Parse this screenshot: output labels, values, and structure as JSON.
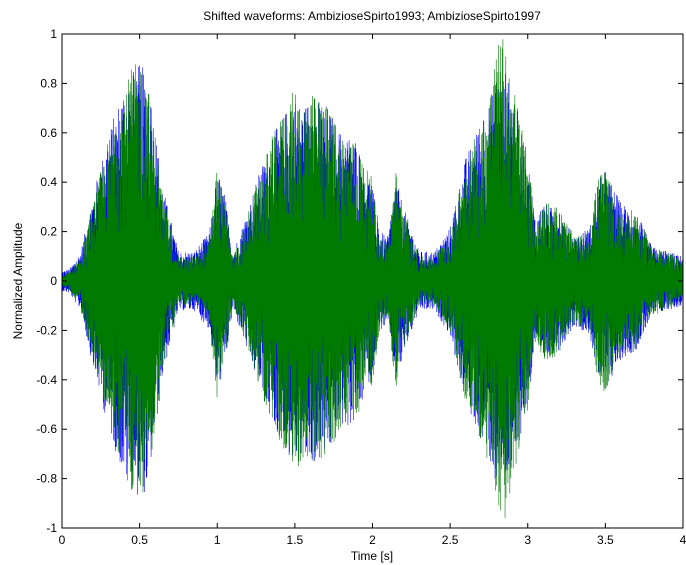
{
  "chart_data": {
    "type": "line",
    "title": "Shifted waveforms: AmbizioseSpirto1993;  AmbizioseSpirto1997",
    "xlabel": "Time [s]",
    "ylabel": "Normalized Amplitude",
    "xlim": [
      0,
      4
    ],
    "ylim": [
      -1,
      1
    ],
    "xticks": [
      0,
      0.5,
      1,
      1.5,
      2,
      2.5,
      3,
      3.5,
      4
    ],
    "xtick_labels": [
      "0",
      "0.5",
      "1",
      "1.5",
      "2",
      "2.5",
      "3",
      "3.5",
      "4"
    ],
    "yticks": [
      -1,
      -0.8,
      -0.6,
      -0.4,
      -0.2,
      0,
      0.2,
      0.4,
      0.6,
      0.8,
      1
    ],
    "ytick_labels": [
      "-1",
      "-0.8",
      "-0.6",
      "-0.4",
      "-0.2",
      "0",
      "0.2",
      "0.4",
      "0.6",
      "0.8",
      "1"
    ],
    "grid": false,
    "legend": "none",
    "series": [
      {
        "color": "#0000ff",
        "envelope": {
          "t": [
            0,
            0.05,
            0.12,
            0.2,
            0.3,
            0.4,
            0.45,
            0.5,
            0.55,
            0.6,
            0.65,
            0.75,
            0.85,
            0.95,
            1.0,
            1.05,
            1.1,
            1.15,
            1.25,
            1.35,
            1.45,
            1.5,
            1.55,
            1.6,
            1.7,
            1.8,
            1.9,
            1.95,
            2.0,
            2.05,
            2.1,
            2.15,
            2.2,
            2.3,
            2.4,
            2.5,
            2.6,
            2.7,
            2.75,
            2.8,
            2.85,
            2.9,
            3.0,
            3.05,
            3.1,
            3.2,
            3.3,
            3.4,
            3.45,
            3.5,
            3.55,
            3.6,
            3.7,
            3.8,
            3.9,
            4.0
          ],
          "amp": [
            0.04,
            0.05,
            0.12,
            0.35,
            0.6,
            0.8,
            0.85,
            0.88,
            0.85,
            0.62,
            0.38,
            0.12,
            0.12,
            0.2,
            0.45,
            0.35,
            0.12,
            0.2,
            0.4,
            0.58,
            0.7,
            0.75,
            0.7,
            0.75,
            0.72,
            0.6,
            0.58,
            0.45,
            0.38,
            0.2,
            0.18,
            0.42,
            0.3,
            0.12,
            0.12,
            0.22,
            0.5,
            0.65,
            0.72,
            0.85,
            0.82,
            0.8,
            0.5,
            0.25,
            0.32,
            0.28,
            0.18,
            0.22,
            0.4,
            0.45,
            0.38,
            0.32,
            0.28,
            0.14,
            0.12,
            0.1
          ]
        }
      },
      {
        "color": "#007a00",
        "envelope": {
          "t": [
            0,
            0.05,
            0.12,
            0.2,
            0.3,
            0.4,
            0.45,
            0.5,
            0.55,
            0.6,
            0.65,
            0.75,
            0.85,
            0.95,
            1.0,
            1.05,
            1.1,
            1.15,
            1.25,
            1.35,
            1.45,
            1.5,
            1.55,
            1.6,
            1.7,
            1.8,
            1.9,
            1.95,
            2.0,
            2.05,
            2.1,
            2.15,
            2.2,
            2.3,
            2.4,
            2.5,
            2.6,
            2.7,
            2.75,
            2.8,
            2.85,
            2.9,
            3.0,
            3.05,
            3.1,
            3.2,
            3.3,
            3.4,
            3.45,
            3.5,
            3.55,
            3.6,
            3.7,
            3.8,
            3.9,
            4.0
          ],
          "amp": [
            0.02,
            0.04,
            0.1,
            0.32,
            0.58,
            0.78,
            0.86,
            0.9,
            0.82,
            0.6,
            0.35,
            0.1,
            0.1,
            0.18,
            0.48,
            0.32,
            0.1,
            0.18,
            0.38,
            0.58,
            0.72,
            0.78,
            0.72,
            0.76,
            0.72,
            0.6,
            0.56,
            0.46,
            0.42,
            0.18,
            0.16,
            0.45,
            0.28,
            0.1,
            0.1,
            0.2,
            0.5,
            0.66,
            0.75,
            0.95,
            1.0,
            0.82,
            0.52,
            0.22,
            0.34,
            0.3,
            0.18,
            0.2,
            0.42,
            0.46,
            0.36,
            0.3,
            0.28,
            0.14,
            0.12,
            0.08
          ]
        }
      }
    ]
  }
}
